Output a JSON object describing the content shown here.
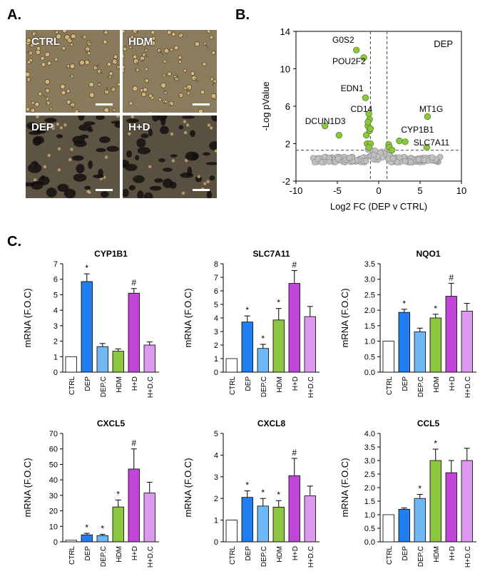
{
  "panel_labels": {
    "a": "A.",
    "b": "B.",
    "c": "C."
  },
  "micrographs": [
    {
      "label": "CTRL",
      "tone": "#8a7a5c"
    },
    {
      "label": "HDM",
      "tone": "#8c7c5e"
    },
    {
      "label": "DEP",
      "tone": "#5e5444"
    },
    {
      "label": "H+D",
      "tone": "#5a5042"
    }
  ],
  "chart_data": [
    {
      "type": "scatter",
      "title": "",
      "annotation": "DEP",
      "xlabel": "Log2 FC (DEP v CTRL)",
      "ylabel": "-Log pValue",
      "xlim": [
        -10,
        10
      ],
      "ylim": [
        -2,
        14
      ],
      "xticks": [
        -10,
        -5,
        0,
        5,
        10
      ],
      "yticks": [
        -2,
        2,
        6,
        10,
        14
      ],
      "threshold_x": [
        -1,
        1
      ],
      "threshold_y": 1.3,
      "colors": {
        "significant": "#8dc63f",
        "nonsignificant": "#bfbfbf"
      },
      "significant_points": [
        [
          -2.7,
          12.0
        ],
        [
          -1.8,
          11.2
        ],
        [
          -1.6,
          6.9
        ],
        [
          -1.2,
          5.2
        ],
        [
          -1.1,
          4.6
        ],
        [
          -1.3,
          3.9
        ],
        [
          -1.1,
          3.4
        ],
        [
          -1.5,
          2.9
        ],
        [
          -4.8,
          2.9
        ],
        [
          -1.4,
          2.0
        ],
        [
          -1.0,
          2.0
        ],
        [
          -6.5,
          3.9
        ],
        [
          -1.2,
          1.6
        ],
        [
          1.2,
          1.9
        ],
        [
          1.3,
          1.6
        ],
        [
          2.5,
          2.3
        ],
        [
          3.2,
          2.2
        ],
        [
          5.9,
          4.9
        ],
        [
          5.8,
          1.6
        ],
        [
          1.6,
          1.3
        ],
        [
          -1.3,
          4.3
        ],
        [
          -1.0,
          3.6
        ]
      ],
      "gene_labels": [
        {
          "name": "G0S2",
          "x": -5.6,
          "y": 12.8
        },
        {
          "name": "POU2F2",
          "x": -5.6,
          "y": 10.5
        },
        {
          "name": "EDN1",
          "x": -4.6,
          "y": 7.6
        },
        {
          "name": "CD14",
          "x": -3.4,
          "y": 5.4
        },
        {
          "name": "DCUN1D3",
          "x": -8.9,
          "y": 4.1
        },
        {
          "name": "MT1G",
          "x": 4.9,
          "y": 5.4
        },
        {
          "name": "CYP1B1",
          "x": 2.7,
          "y": 3.2
        },
        {
          "name": "SLC7A11",
          "x": 4.2,
          "y": 1.8
        }
      ]
    },
    {
      "type": "bar",
      "title": "CYP1B1",
      "ylabel": "mRNA (F.O.C)",
      "categories": [
        "CTRL",
        "DEP",
        "DEP.C",
        "HDM",
        "H+D",
        "H+D.C"
      ],
      "values": [
        1.0,
        5.85,
        1.65,
        1.35,
        5.1,
        1.75
      ],
      "errors": [
        0,
        0.5,
        0.2,
        0.15,
        0.3,
        0.2
      ],
      "marks": [
        "",
        "*",
        "",
        "",
        "#",
        ""
      ],
      "ylim": [
        0,
        7
      ],
      "yticks": [
        "0",
        "1",
        "2",
        "3",
        "4",
        "5",
        "6",
        "7"
      ]
    },
    {
      "type": "bar",
      "title": "SLC7A11",
      "ylabel": "mRNA (F.O.C)",
      "categories": [
        "CTRL",
        "DEP",
        "DEP.C",
        "HDM",
        "H+D",
        "H+D.C"
      ],
      "values": [
        1.0,
        3.7,
        1.75,
        3.85,
        6.55,
        4.1
      ],
      "errors": [
        0,
        0.45,
        0.3,
        0.85,
        0.95,
        0.75
      ],
      "marks": [
        "",
        "*",
        "*",
        "*",
        "#",
        ""
      ],
      "ylim": [
        0,
        8
      ],
      "yticks": [
        "0",
        "1",
        "2",
        "3",
        "4",
        "5",
        "6",
        "7",
        "8"
      ]
    },
    {
      "type": "bar",
      "title": "NQO1",
      "ylabel": "mRNA (F.O.C)",
      "categories": [
        "CTRL",
        "DEP",
        "DEP.C",
        "HDM",
        "H+D",
        "H+D.C"
      ],
      "values": [
        1.0,
        1.93,
        1.3,
        1.75,
        2.45,
        1.97
      ],
      "errors": [
        0,
        0.1,
        0.12,
        0.12,
        0.42,
        0.25
      ],
      "marks": [
        "",
        "*",
        "",
        "*",
        "#",
        ""
      ],
      "ylim": [
        0,
        3.5
      ],
      "yticks": [
        "0.0",
        "0.5",
        "1.0",
        "1.5",
        "2.0",
        "2.5",
        "3.0",
        "3.5"
      ]
    },
    {
      "type": "bar",
      "title": "CXCL5",
      "ylabel": "mRNA (F.O.C)",
      "categories": [
        "CTRL",
        "DEP",
        "DEP.C",
        "HDM",
        "H+D",
        "H+D.C"
      ],
      "values": [
        1.0,
        4.5,
        4.0,
        22.5,
        47.0,
        31.5
      ],
      "errors": [
        0,
        1.0,
        0.8,
        4.5,
        13.0,
        7.0
      ],
      "marks": [
        "",
        "*",
        "*",
        "*",
        "#",
        ""
      ],
      "ylim": [
        0,
        70
      ],
      "yticks": [
        "0",
        "10",
        "20",
        "30",
        "40",
        "50",
        "60",
        "70"
      ]
    },
    {
      "type": "bar",
      "title": "CXCL8",
      "ylabel": "mRNA (F.O.C)",
      "categories": [
        "CTRL",
        "DEP",
        "DEP.C",
        "HDM",
        "H+D",
        "H+D.C"
      ],
      "values": [
        1.0,
        2.05,
        1.65,
        1.6,
        3.05,
        2.12
      ],
      "errors": [
        0,
        0.3,
        0.35,
        0.3,
        0.8,
        0.45
      ],
      "marks": [
        "",
        "*",
        "*",
        "*",
        "#",
        ""
      ],
      "ylim": [
        0,
        5
      ],
      "yticks": [
        "0",
        "1",
        "2",
        "3",
        "4",
        "5"
      ]
    },
    {
      "type": "bar",
      "title": "CCL5",
      "ylabel": "mRNA (F.O.C)",
      "categories": [
        "CTRL",
        "DEP",
        "DEP.C",
        "HDM",
        "H+D",
        "H+D.C"
      ],
      "values": [
        1.0,
        1.2,
        1.6,
        3.0,
        2.55,
        3.0
      ],
      "errors": [
        0,
        0.05,
        0.15,
        0.42,
        0.45,
        0.45
      ],
      "marks": [
        "",
        "",
        "*",
        "*",
        "",
        ""
      ],
      "ylim": [
        0,
        4
      ],
      "yticks": [
        "0.0",
        "0.5",
        "1.0",
        "1.5",
        "2.0",
        "2.5",
        "3.0",
        "3.5",
        "4.0"
      ]
    }
  ],
  "bar_colors": [
    "#ffffff",
    "#1f7ff0",
    "#6fb8f5",
    "#8dc63f",
    "#c245d9",
    "#dd99ee"
  ]
}
